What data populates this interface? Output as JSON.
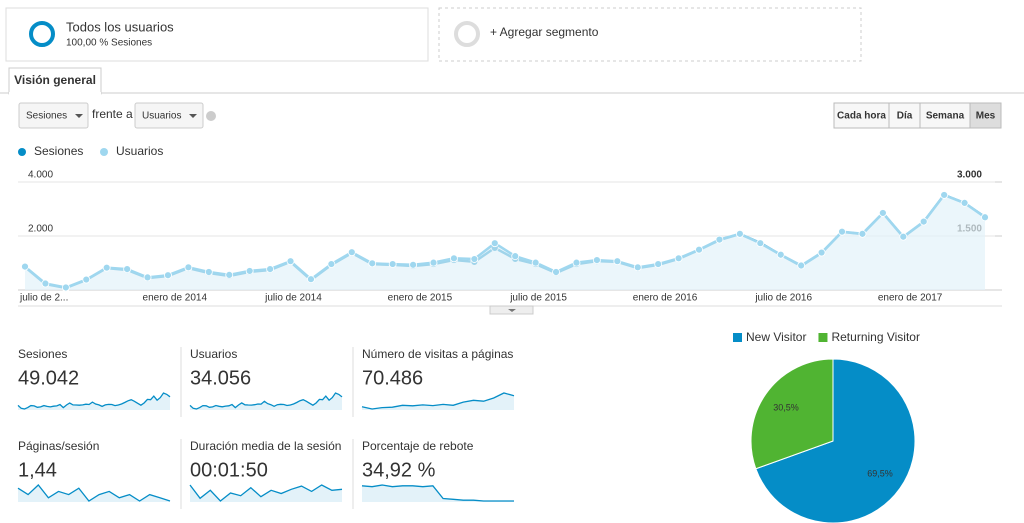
{
  "segments": {
    "primary": {
      "title": "Todos los usuarios",
      "subtitle": "100,00 % Sesiones"
    },
    "add": "+ Agregar segmento"
  },
  "tab": "Visión general",
  "controls": {
    "metric1": "Sesiones",
    "vs": "frente a",
    "metric2": "Usuarios",
    "granularity": [
      "Cada hora",
      "Día",
      "Semana",
      "Mes"
    ]
  },
  "chart_data": [
    {
      "type": "line",
      "categories": [
        "julio de 2...",
        null,
        null,
        null,
        null,
        null,
        "enero de 2014",
        null,
        null,
        null,
        null,
        null,
        "julio de 2014",
        null,
        null,
        null,
        null,
        null,
        "enero de 2015",
        null,
        null,
        null,
        null,
        null,
        "julio de 2015",
        null,
        null,
        null,
        null,
        null,
        "enero de 2016",
        null,
        null,
        null,
        null,
        null,
        "julio de 2016",
        null,
        null,
        null,
        null,
        null,
        "enero de 2017",
        null,
        null,
        null,
        null,
        null
      ],
      "series": [
        {
          "name": "Sesiones",
          "color": "#058dc7",
          "values": [
            850,
            220,
            75,
            370,
            810,
            740,
            440,
            520,
            810,
            630,
            520,
            670,
            740,
            1040,
            370,
            930,
            1370,
            960,
            930,
            890,
            960,
            1110,
            1040,
            1560,
            1150,
            960,
            630,
            960,
            1070,
            1040,
            810,
            930,
            1150,
            1480,
            1850,
            2070,
            1740,
            1300,
            890,
            1370,
            2150,
            2070,
            2850,
            1960,
            2520,
            3520,
            3220,
            2700
          ]
        },
        {
          "name": "Usuarios",
          "color": "#9fd7ef",
          "axis": "y2",
          "values": [
            650,
            180,
            70,
            290,
            620,
            580,
            350,
            410,
            630,
            500,
            420,
            530,
            580,
            800,
            300,
            720,
            1050,
            740,
            720,
            700,
            760,
            880,
            860,
            1300,
            940,
            760,
            500,
            760,
            830,
            800,
            630,
            720,
            880,
            1120,
            1400,
            1560,
            1300,
            980,
            680,
            1040,
            1620,
            1560,
            2140,
            1480,
            1900,
            2640,
            2420,
            2020
          ]
        }
      ],
      "ylim": [
        0,
        4000
      ],
      "yticks": [
        {
          "value": 2000,
          "label": "2.000"
        },
        {
          "value": 4000,
          "label": "4.000"
        }
      ],
      "y2lim": [
        0,
        3000
      ],
      "y2ticks": [
        {
          "value": 1500,
          "label": "1.500"
        },
        {
          "value": 3000,
          "label": "3.000"
        }
      ],
      "grid": true
    },
    {
      "type": "pie",
      "categories": [
        "New Visitor",
        "Returning Visitor"
      ],
      "values": [
        69.5,
        30.5
      ],
      "value_labels": [
        "69,5%",
        "30,5%"
      ],
      "colors": [
        "#058dc7",
        "#50b432"
      ]
    }
  ],
  "scorecards": [
    {
      "label": "Sesiones",
      "value": "49.042"
    },
    {
      "label": "Usuarios",
      "value": "34.056"
    },
    {
      "label": "Número de visitas a páginas",
      "value": "70.486",
      "trend": [
        1200,
        700,
        1000,
        1100,
        1500,
        1400,
        1600,
        1450,
        1700,
        1500,
        2200,
        2600,
        2400,
        3100,
        4200,
        3600
      ]
    },
    {
      "label": "Páginas/sesión",
      "value": "1,44",
      "trend": [
        1.46,
        1.44,
        1.47,
        1.43,
        1.45,
        1.44,
        1.46,
        1.42,
        1.44,
        1.45,
        1.43,
        1.44,
        1.42,
        1.44,
        1.43,
        1.42
      ]
    },
    {
      "label": "Duración media de la sesión",
      "value": "00:01:50",
      "trend": [
        120,
        95,
        110,
        90,
        105,
        100,
        115,
        98,
        110,
        104,
        112,
        118,
        108,
        120,
        110,
        112
      ]
    },
    {
      "label": "Porcentaje de rebote",
      "value": "34,92 %",
      "trend": [
        45,
        44,
        46,
        44,
        45,
        45,
        44,
        45,
        30,
        29,
        28,
        28,
        27,
        27,
        27,
        27
      ]
    }
  ]
}
